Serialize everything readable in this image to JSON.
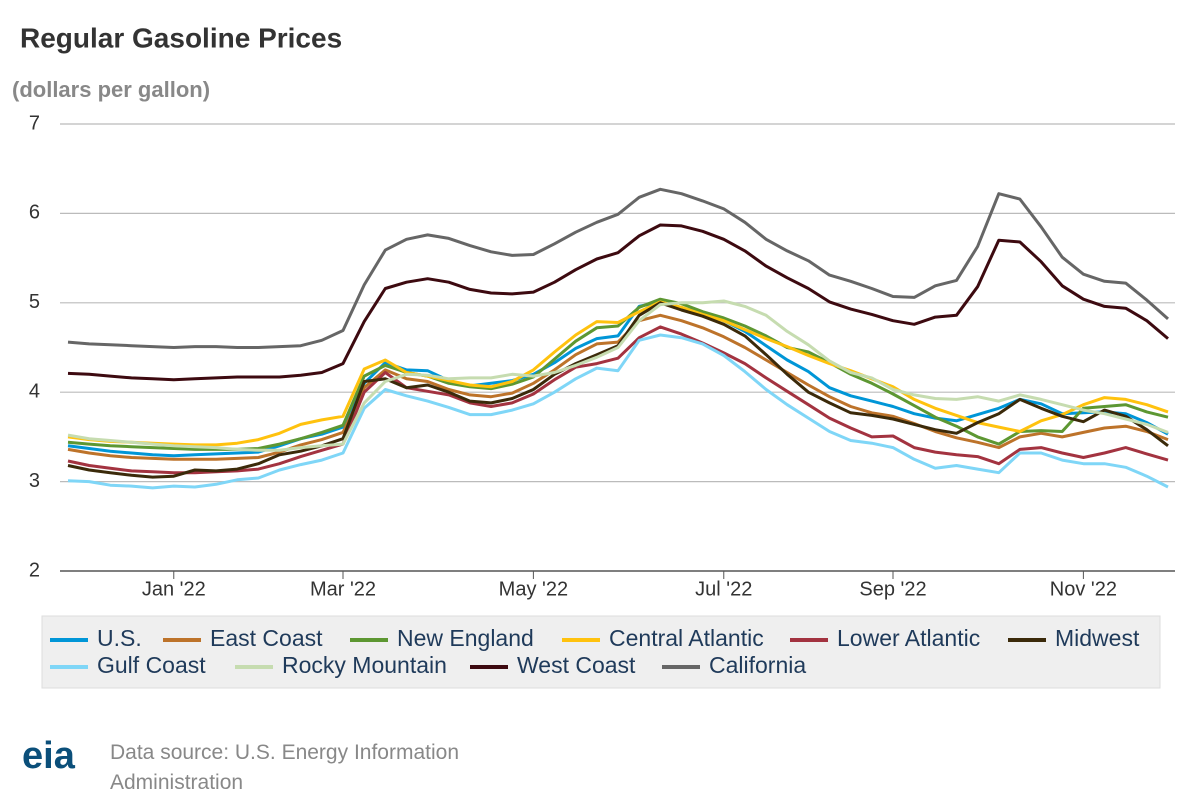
{
  "chart_data": {
    "type": "line",
    "title": "Regular Gasoline Prices",
    "subtitle": "(dollars per gallon)",
    "categories": [
      null,
      null,
      null,
      null,
      null,
      "Jan '22",
      null,
      null,
      null,
      null,
      null,
      null,
      null,
      "Mar '22",
      null,
      null,
      null,
      null,
      null,
      null,
      null,
      null,
      "May '22",
      null,
      null,
      null,
      null,
      null,
      null,
      null,
      null,
      "Jul '22",
      null,
      null,
      null,
      null,
      null,
      null,
      null,
      "Sep '22",
      null,
      null,
      null,
      null,
      null,
      null,
      null,
      null,
      "Nov '22",
      null,
      null,
      null,
      null
    ],
    "ylim": [
      2,
      7
    ],
    "yticks": [
      2,
      3,
      4,
      5,
      6,
      7
    ],
    "grid": true,
    "legend": "bottom",
    "series": [
      {
        "name": "U.S.",
        "color": "#0096d7",
        "values": [
          3.4,
          3.37,
          3.34,
          3.32,
          3.3,
          3.29,
          3.3,
          3.31,
          3.32,
          3.33,
          3.4,
          3.48,
          3.53,
          3.61,
          4.1,
          4.33,
          4.25,
          4.24,
          4.13,
          4.07,
          4.1,
          4.13,
          4.2,
          4.33,
          4.49,
          4.6,
          4.63,
          4.96,
          5.01,
          4.94,
          4.89,
          4.8,
          4.68,
          4.52,
          4.36,
          4.23,
          4.05,
          3.96,
          3.9,
          3.84,
          3.76,
          3.71,
          3.68,
          3.75,
          3.82,
          3.92,
          3.87,
          3.76,
          3.77,
          3.78,
          3.76,
          3.66,
          3.53
        ]
      },
      {
        "name": "East Coast",
        "color": "#bd732a",
        "values": [
          3.36,
          3.32,
          3.29,
          3.27,
          3.26,
          3.25,
          3.25,
          3.25,
          3.26,
          3.27,
          3.33,
          3.41,
          3.47,
          3.55,
          4.05,
          4.25,
          4.15,
          4.12,
          4.03,
          3.97,
          3.95,
          3.99,
          4.1,
          4.25,
          4.42,
          4.54,
          4.56,
          4.8,
          4.86,
          4.8,
          4.72,
          4.62,
          4.5,
          4.36,
          4.22,
          4.08,
          3.95,
          3.84,
          3.77,
          3.73,
          3.65,
          3.56,
          3.49,
          3.44,
          3.38,
          3.5,
          3.54,
          3.5,
          3.55,
          3.6,
          3.62,
          3.56,
          3.47
        ]
      },
      {
        "name": "New England",
        "color": "#5d9732",
        "values": [
          3.44,
          3.42,
          3.4,
          3.39,
          3.38,
          3.37,
          3.36,
          3.36,
          3.36,
          3.37,
          3.42,
          3.48,
          3.55,
          3.63,
          4.18,
          4.3,
          4.22,
          4.18,
          4.1,
          4.06,
          4.04,
          4.09,
          4.17,
          4.37,
          4.57,
          4.72,
          4.74,
          4.95,
          5.04,
          4.99,
          4.9,
          4.83,
          4.74,
          4.63,
          4.5,
          4.45,
          4.33,
          4.2,
          4.1,
          3.98,
          3.85,
          3.72,
          3.62,
          3.5,
          3.42,
          3.56,
          3.57,
          3.56,
          3.82,
          3.84,
          3.86,
          3.78,
          3.72
        ]
      },
      {
        "name": "Central Atlantic",
        "color": "#ffc20e",
        "values": [
          3.5,
          3.47,
          3.45,
          3.44,
          3.43,
          3.42,
          3.41,
          3.41,
          3.43,
          3.47,
          3.54,
          3.64,
          3.69,
          3.73,
          4.26,
          4.36,
          4.22,
          4.18,
          4.13,
          4.08,
          4.06,
          4.12,
          4.25,
          4.45,
          4.64,
          4.79,
          4.78,
          4.9,
          5.01,
          4.95,
          4.87,
          4.8,
          4.7,
          4.6,
          4.51,
          4.41,
          4.32,
          4.24,
          4.15,
          4.06,
          3.92,
          3.82,
          3.74,
          3.66,
          3.61,
          3.56,
          3.68,
          3.75,
          3.86,
          3.94,
          3.92,
          3.86,
          3.78
        ]
      },
      {
        "name": "Lower Atlantic",
        "color": "#a33340",
        "values": [
          3.23,
          3.18,
          3.15,
          3.12,
          3.11,
          3.1,
          3.1,
          3.11,
          3.12,
          3.14,
          3.2,
          3.28,
          3.35,
          3.42,
          4.0,
          4.22,
          4.05,
          4.01,
          3.97,
          3.88,
          3.84,
          3.88,
          3.98,
          4.14,
          4.28,
          4.32,
          4.38,
          4.61,
          4.73,
          4.65,
          4.55,
          4.44,
          4.32,
          4.16,
          4.01,
          3.86,
          3.71,
          3.6,
          3.5,
          3.51,
          3.38,
          3.33,
          3.3,
          3.28,
          3.2,
          3.36,
          3.38,
          3.32,
          3.27,
          3.32,
          3.38,
          3.31,
          3.24
        ]
      },
      {
        "name": "Midwest",
        "color": "#3b2a0a",
        "values": [
          3.18,
          3.13,
          3.1,
          3.07,
          3.05,
          3.06,
          3.13,
          3.12,
          3.14,
          3.2,
          3.3,
          3.34,
          3.4,
          3.48,
          4.12,
          4.15,
          4.05,
          4.08,
          4.0,
          3.9,
          3.88,
          3.93,
          4.03,
          4.2,
          4.32,
          4.42,
          4.52,
          4.86,
          5.0,
          4.92,
          4.85,
          4.76,
          4.63,
          4.42,
          4.2,
          4.0,
          3.88,
          3.77,
          3.74,
          3.7,
          3.64,
          3.58,
          3.54,
          3.66,
          3.76,
          3.92,
          3.82,
          3.73,
          3.67,
          3.8,
          3.73,
          3.58,
          3.4
        ]
      },
      {
        "name": "Gulf Coast",
        "color": "#7fd6f7",
        "values": [
          3.01,
          3.0,
          2.96,
          2.95,
          2.93,
          2.95,
          2.94,
          2.97,
          3.02,
          3.04,
          3.13,
          3.19,
          3.24,
          3.32,
          3.82,
          4.03,
          3.96,
          3.9,
          3.83,
          3.75,
          3.75,
          3.8,
          3.87,
          4.0,
          4.15,
          4.27,
          4.24,
          4.58,
          4.64,
          4.61,
          4.54,
          4.41,
          4.23,
          4.03,
          3.86,
          3.71,
          3.56,
          3.46,
          3.43,
          3.38,
          3.25,
          3.15,
          3.18,
          3.14,
          3.1,
          3.32,
          3.32,
          3.24,
          3.2,
          3.2,
          3.16,
          3.06,
          2.94
        ]
      },
      {
        "name": "Rocky Mountain",
        "color": "#c6dcb0",
        "values": [
          3.52,
          3.48,
          3.46,
          3.44,
          3.42,
          3.4,
          3.39,
          3.38,
          3.36,
          3.35,
          3.35,
          3.38,
          3.4,
          3.42,
          3.88,
          4.12,
          4.2,
          4.19,
          4.15,
          4.16,
          4.16,
          4.2,
          4.18,
          4.22,
          4.3,
          4.39,
          4.5,
          4.8,
          4.98,
          5.0,
          5.0,
          5.02,
          4.96,
          4.86,
          4.68,
          4.53,
          4.35,
          4.22,
          4.16,
          4.03,
          3.97,
          3.93,
          3.92,
          3.95,
          3.9,
          3.97,
          3.92,
          3.86,
          3.8,
          3.76,
          3.7,
          3.64,
          3.55
        ]
      },
      {
        "name": "West Coast",
        "color": "#3d0a10",
        "values": [
          4.21,
          4.2,
          4.18,
          4.16,
          4.15,
          4.14,
          4.15,
          4.16,
          4.17,
          4.17,
          4.17,
          4.19,
          4.22,
          4.32,
          4.79,
          5.16,
          5.23,
          5.27,
          5.23,
          5.15,
          5.11,
          5.1,
          5.12,
          5.23,
          5.37,
          5.49,
          5.56,
          5.75,
          5.87,
          5.86,
          5.8,
          5.71,
          5.58,
          5.41,
          5.28,
          5.16,
          5.01,
          4.93,
          4.87,
          4.8,
          4.76,
          4.84,
          4.86,
          5.18,
          5.7,
          5.68,
          5.46,
          5.19,
          5.04,
          4.96,
          4.94,
          4.8,
          4.6
        ]
      },
      {
        "name": "California",
        "color": "#666666",
        "values": [
          4.56,
          4.54,
          4.53,
          4.52,
          4.51,
          4.5,
          4.51,
          4.51,
          4.5,
          4.5,
          4.51,
          4.52,
          4.58,
          4.69,
          5.2,
          5.59,
          5.71,
          5.76,
          5.72,
          5.64,
          5.57,
          5.53,
          5.54,
          5.66,
          5.79,
          5.9,
          5.99,
          6.18,
          6.27,
          6.22,
          6.14,
          6.05,
          5.9,
          5.71,
          5.58,
          5.47,
          5.31,
          5.24,
          5.16,
          5.07,
          5.06,
          5.19,
          5.25,
          5.63,
          6.22,
          6.16,
          5.85,
          5.51,
          5.32,
          5.24,
          5.22,
          5.03,
          4.82
        ]
      }
    ]
  },
  "footer": {
    "logo": "eia",
    "source": "Data source: U.S. Energy Information Administration"
  }
}
